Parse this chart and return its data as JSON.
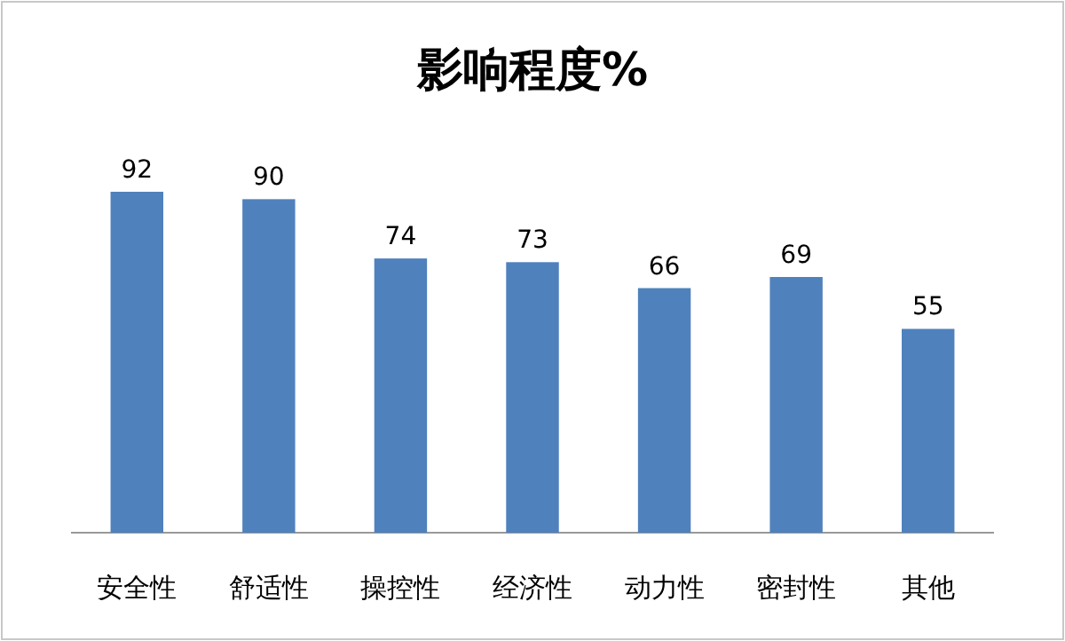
{
  "chart_data": {
    "type": "bar",
    "title": "影响程度%",
    "categories": [
      "安全性",
      "舒适性",
      "操控性",
      "经济性",
      "动力性",
      "密封性",
      "其他"
    ],
    "values": [
      92,
      90,
      74,
      73,
      66,
      69,
      55
    ],
    "color": "#4f81bd",
    "data_labels": true
  }
}
